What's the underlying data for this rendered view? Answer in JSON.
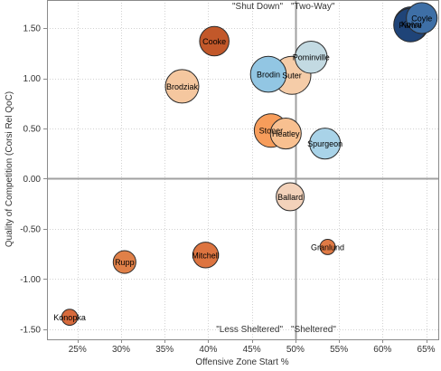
{
  "chart_data": {
    "type": "scatter",
    "xlabel": "Offensive Zone Start %",
    "ylabel": "Quality of Competition (Corsi Rel QoC)",
    "xlim": [
      0.215,
      0.665
    ],
    "ylim": [
      -1.6,
      1.78
    ],
    "x_ticks": [
      {
        "value": 0.25,
        "label": "25%"
      },
      {
        "value": 0.3,
        "label": "30%"
      },
      {
        "value": 0.35,
        "label": "35%"
      },
      {
        "value": 0.4,
        "label": "40%"
      },
      {
        "value": 0.45,
        "label": "45%"
      },
      {
        "value": 0.5,
        "label": "50%"
      },
      {
        "value": 0.55,
        "label": "55%"
      },
      {
        "value": 0.6,
        "label": "60%"
      },
      {
        "value": 0.65,
        "label": "65%"
      }
    ],
    "y_ticks": [
      {
        "value": -1.5,
        "label": "-1.50"
      },
      {
        "value": -1.0,
        "label": "-1.00"
      },
      {
        "value": -0.5,
        "label": "-0.50"
      },
      {
        "value": 0.0,
        "label": "0.00"
      },
      {
        "value": 0.5,
        "label": "0.50"
      },
      {
        "value": 1.0,
        "label": "1.00"
      },
      {
        "value": 1.5,
        "label": "1.50"
      }
    ],
    "grid": true,
    "reference_lines": {
      "x": 0.5,
      "y": 0.0
    },
    "quadrant_labels": [
      "\"Shut Down\"",
      "\"Two-Way\"",
      "\"Less Sheltered\"",
      "\"Sheltered\""
    ],
    "points": [
      {
        "name": "Coyle",
        "x": 0.645,
        "y": 1.6,
        "size": 0.45,
        "color": "#3e6fa6"
      },
      {
        "name": "Parise",
        "x": 0.632,
        "y": 1.53,
        "size": 0.55,
        "color": "#1f4478"
      },
      {
        "name": "Koivu",
        "x": 0.633,
        "y": 1.54,
        "size": 0.6,
        "color": "#213f6a"
      },
      {
        "name": "Cooke",
        "x": 0.407,
        "y": 1.37,
        "size": 0.4,
        "color": "#c2582a"
      },
      {
        "name": "Pominville",
        "x": 0.518,
        "y": 1.21,
        "size": 0.5,
        "color": "#c3dae2"
      },
      {
        "name": "Suter",
        "x": 0.496,
        "y": 1.03,
        "size": 0.75,
        "color": "#f5cca8"
      },
      {
        "name": "Brodin",
        "x": 0.469,
        "y": 1.04,
        "size": 0.65,
        "color": "#92c6e3"
      },
      {
        "name": "Brodziak",
        "x": 0.37,
        "y": 0.92,
        "size": 0.55,
        "color": "#f5c79f"
      },
      {
        "name": "Stoner",
        "x": 0.472,
        "y": 0.48,
        "size": 0.55,
        "color": "#f79d5b"
      },
      {
        "name": "Heatley",
        "x": 0.489,
        "y": 0.45,
        "size": 0.45,
        "color": "#f8c090"
      },
      {
        "name": "Spurgeon",
        "x": 0.534,
        "y": 0.35,
        "size": 0.45,
        "color": "#a9d3e8"
      },
      {
        "name": "Ballard",
        "x": 0.494,
        "y": -0.18,
        "size": 0.35,
        "color": "#f3d2ba"
      },
      {
        "name": "Granlund",
        "x": 0.537,
        "y": -0.68,
        "size": 0.06,
        "color": "#e07a45"
      },
      {
        "name": "Mitchell",
        "x": 0.397,
        "y": -0.76,
        "size": 0.28,
        "color": "#dd7440"
      },
      {
        "name": "Rupp",
        "x": 0.304,
        "y": -0.83,
        "size": 0.2,
        "color": "#e08048"
      },
      {
        "name": "Konopka",
        "x": 0.241,
        "y": -1.38,
        "size": 0.07,
        "color": "#d76a3c"
      }
    ]
  }
}
